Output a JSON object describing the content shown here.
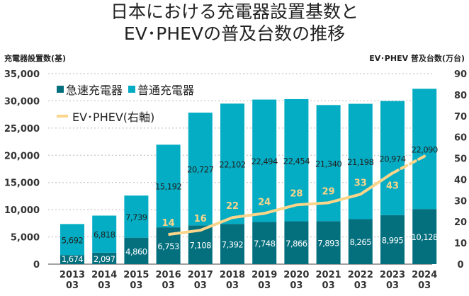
{
  "title_line1": "日本における充電器設置基数と",
  "title_line2": "EV･PHEVの普及台数の推移",
  "chart_data": {
    "type": "bar",
    "stacked": true,
    "categories": [
      "2013\n03",
      "2014\n03",
      "2015\n03",
      "2016\n03",
      "2017\n03",
      "2018\n03",
      "2019\n03",
      "2020\n03",
      "2021\n03",
      "2022\n03",
      "2023\n03",
      "2024\n03"
    ],
    "series": [
      {
        "name": "急速充電器",
        "color": "#04707e",
        "values": [
          1674,
          2097,
          4860,
          6753,
          7108,
          7392,
          7748,
          7866,
          7893,
          8265,
          8995,
          10128
        ]
      },
      {
        "name": "普通充電器",
        "color": "#04adc4",
        "values": [
          5692,
          6818,
          7739,
          15192,
          20727,
          22102,
          22494,
          22454,
          21340,
          21198,
          20974,
          22090
        ]
      }
    ],
    "line_series": {
      "name": "EV･PHEV(右軸)",
      "color": "#fbd58a",
      "axis": "right",
      "values": [
        null,
        null,
        null,
        14,
        16,
        22,
        24,
        28,
        29,
        33,
        43,
        51
      ],
      "labels": [
        null,
        null,
        null,
        "14",
        "16",
        "22",
        "24",
        "28",
        "29",
        "33",
        "43",
        null
      ],
      "dashed_last_segment": true
    },
    "ylabel": "充電器設置数(基)",
    "ylabel_right": "EV･PHEV 普及台数(万台)",
    "ylim": [
      0,
      35000
    ],
    "ylim_right": [
      0,
      90
    ],
    "yticks": [
      "0",
      "5,000",
      "10,000",
      "15,000",
      "20,000",
      "25,000",
      "30,000",
      "35,000"
    ],
    "yticks_right": [
      "0",
      "10",
      "20",
      "30",
      "40",
      "50",
      "60",
      "70",
      "80",
      "90"
    ],
    "grid": true,
    "legend": "top-left"
  }
}
